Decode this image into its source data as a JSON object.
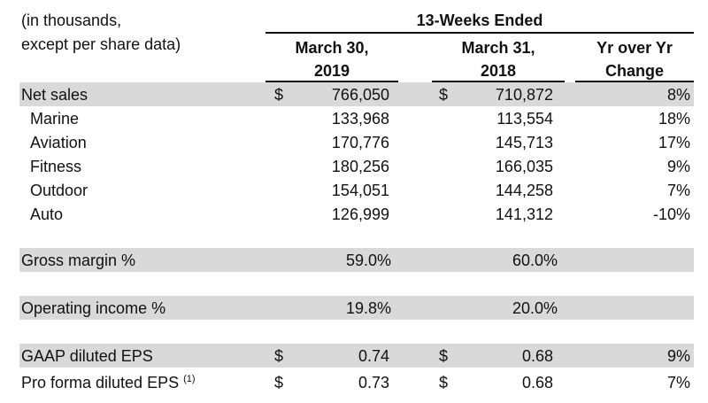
{
  "header": {
    "units_line1": "(in thousands,",
    "units_line2": "except per share data)",
    "period_title": "13-Weeks Ended",
    "col1_line1": "March 30,",
    "col1_line2": "2019",
    "col2_line1": "March 31,",
    "col2_line2": "2018",
    "col3_line1": "Yr over Yr",
    "col3_line2": "Change"
  },
  "rows": {
    "net_sales": {
      "label": "Net sales",
      "cur_sym": "$",
      "v2019": "766,050",
      "cur_sym2": "$",
      "v2018": "710,872",
      "change": "8%"
    },
    "marine": {
      "label": "Marine",
      "v2019": "133,968",
      "v2018": "113,554",
      "change": "18%"
    },
    "aviation": {
      "label": "Aviation",
      "v2019": "170,776",
      "v2018": "145,713",
      "change": "17%"
    },
    "fitness": {
      "label": "Fitness",
      "v2019": "180,256",
      "v2018": "166,035",
      "change": "9%"
    },
    "outdoor": {
      "label": "Outdoor",
      "v2019": "154,051",
      "v2018": "144,258",
      "change": "7%"
    },
    "auto": {
      "label": "Auto",
      "v2019": "126,999",
      "v2018": "141,312",
      "change": "-10%"
    },
    "gross_margin": {
      "label": "Gross margin %",
      "v2019": "59.0%",
      "v2018": "60.0%"
    },
    "operating_income": {
      "label": "Operating income %",
      "v2019": "19.8%",
      "v2018": "20.0%"
    },
    "gaap_eps": {
      "label": "GAAP diluted EPS",
      "cur_sym": "$",
      "v2019": "0.74",
      "cur_sym2": "$",
      "v2018": "0.68",
      "change": "9%"
    },
    "proforma_eps": {
      "label": "Pro forma diluted EPS",
      "footnote": "(1)",
      "cur_sym": "$",
      "v2019": "0.73",
      "cur_sym2": "$",
      "v2018": "0.68",
      "change": "7%"
    }
  }
}
